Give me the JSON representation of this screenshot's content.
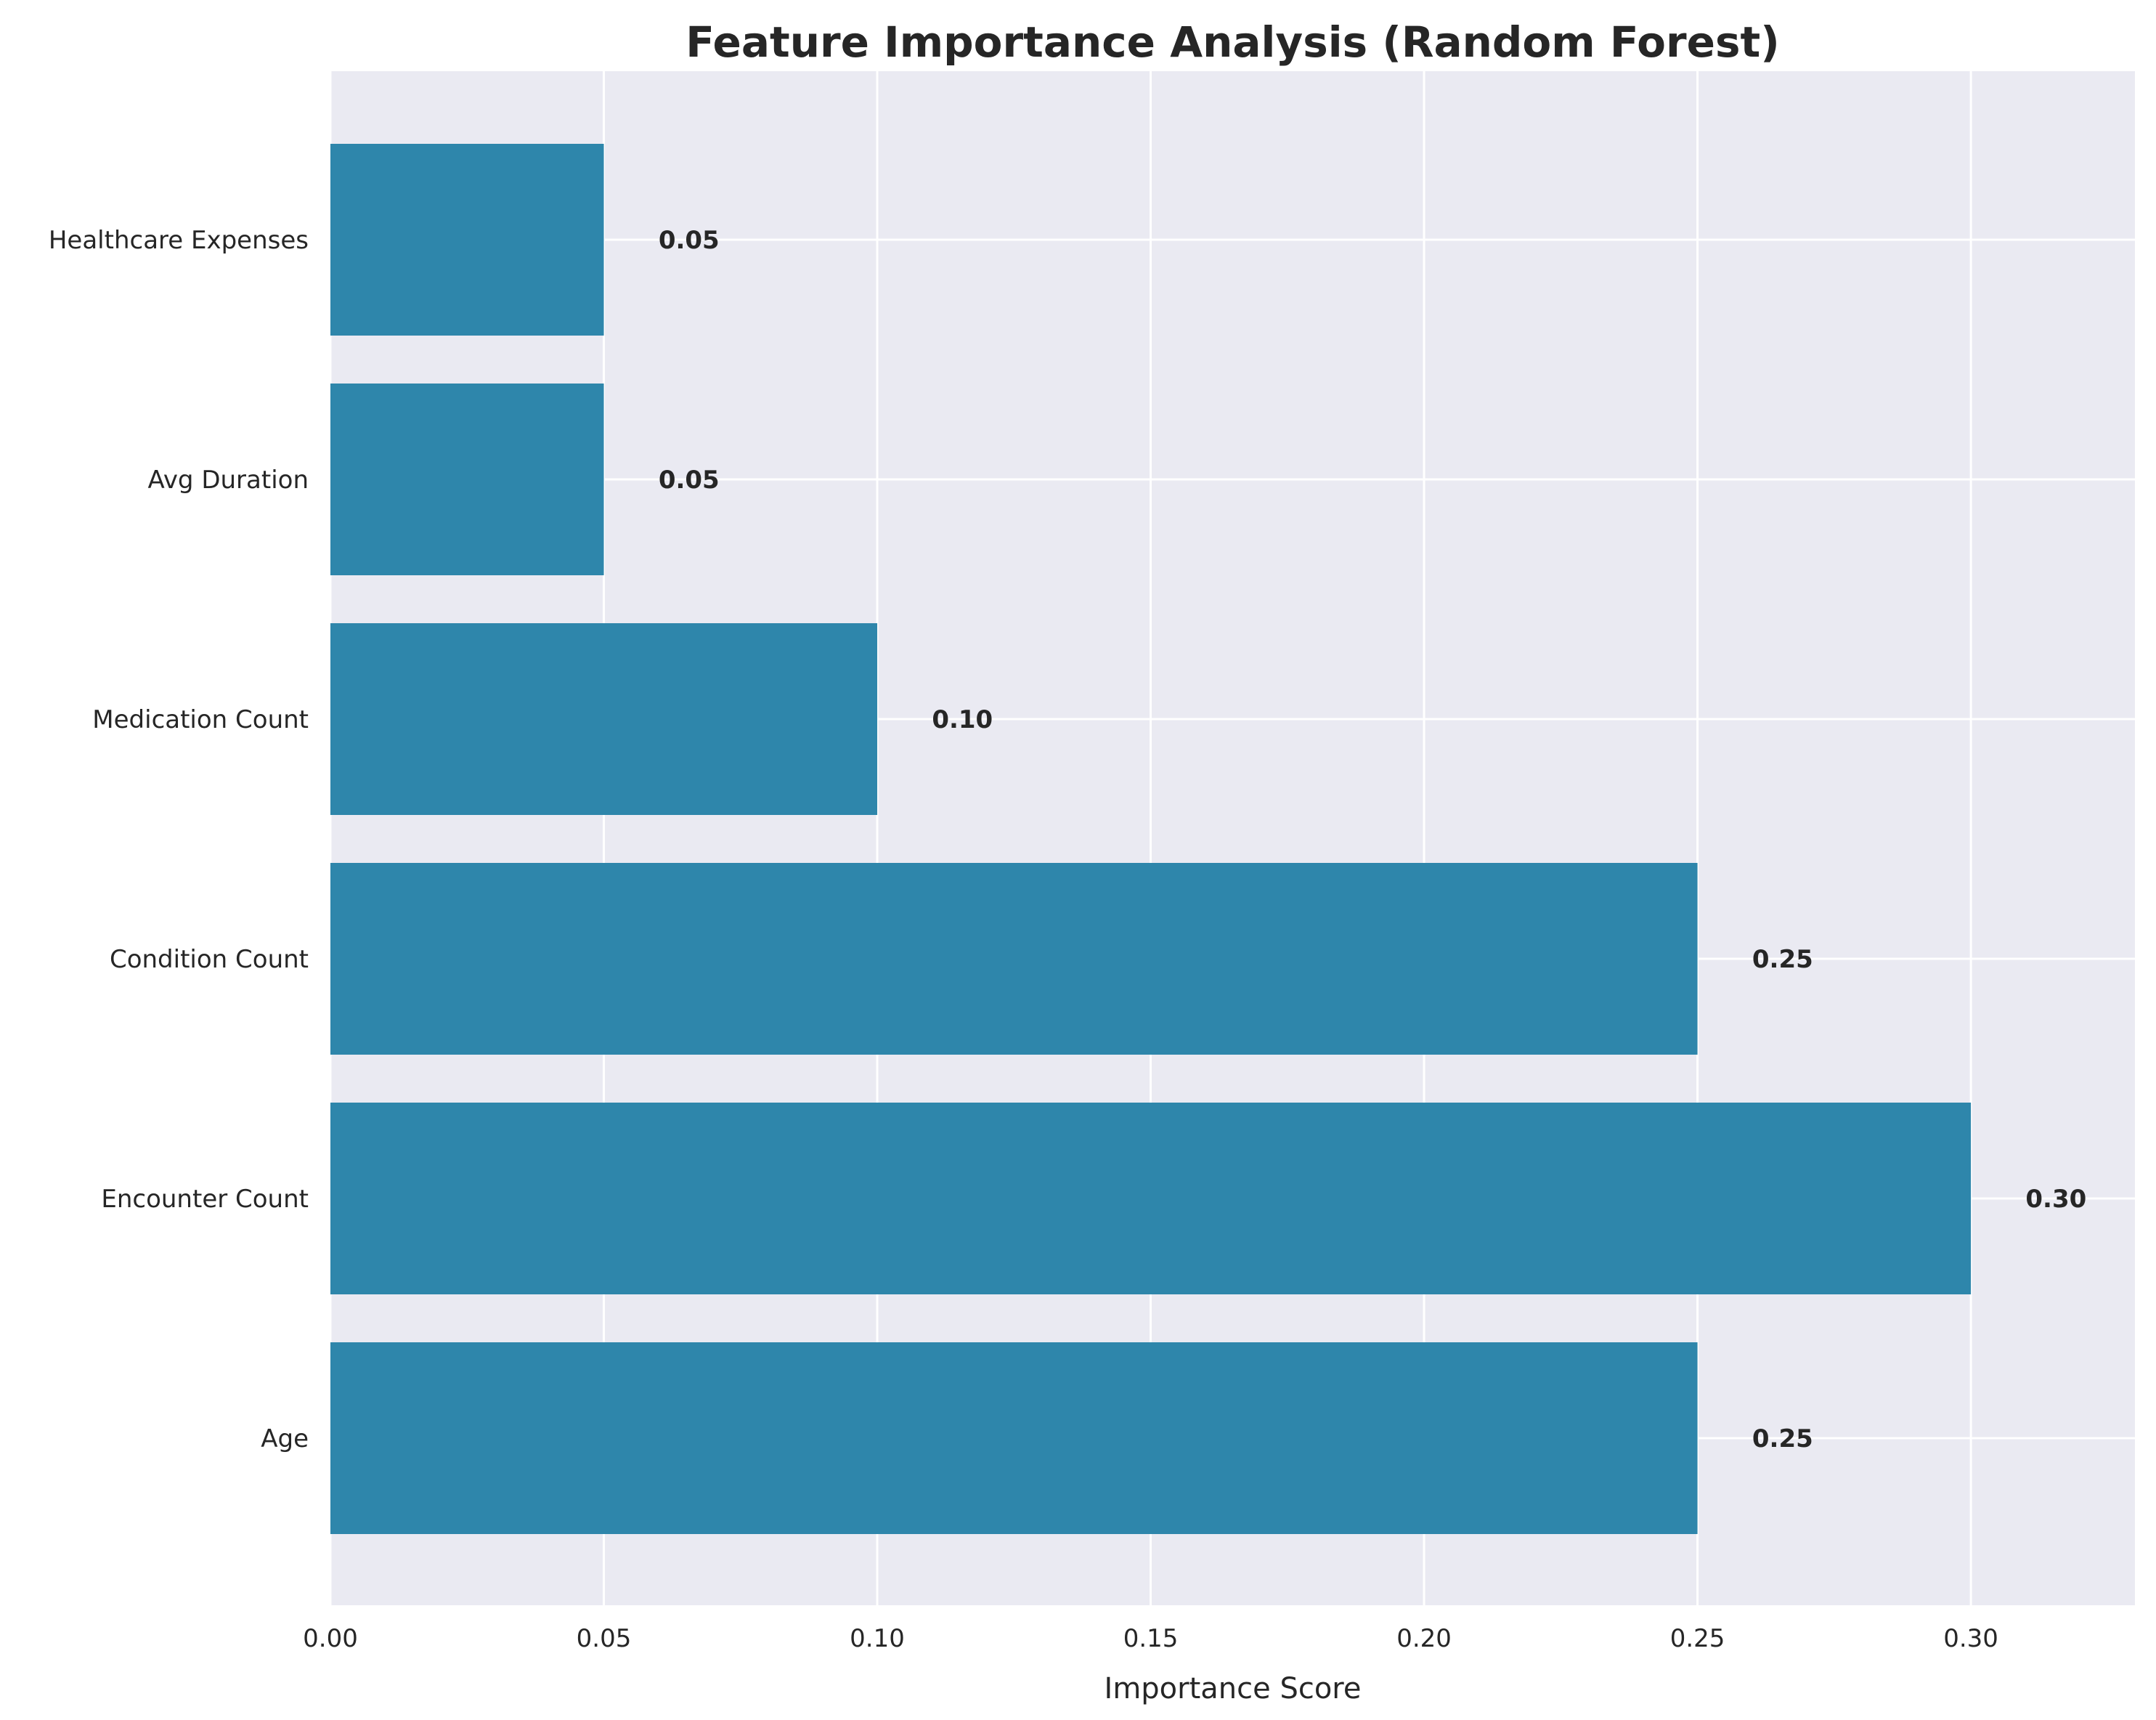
{
  "chart_data": {
    "type": "bar",
    "orientation": "horizontal",
    "title": "Feature Importance Analysis (Random Forest)",
    "xlabel": "Importance Score",
    "ylabel": "",
    "categories": [
      "Age",
      "Encounter Count",
      "Condition Count",
      "Medication Count",
      "Avg Duration",
      "Healthcare Expenses"
    ],
    "values": [
      0.25,
      0.3,
      0.25,
      0.1,
      0.05,
      0.05
    ],
    "value_labels": [
      "0.25",
      "0.30",
      "0.25",
      "0.10",
      "0.05",
      "0.05"
    ],
    "xlim": [
      0,
      0.33
    ],
    "xticks": [
      0.0,
      0.05,
      0.1,
      0.15,
      0.2,
      0.25,
      0.3
    ],
    "xtick_labels": [
      "0.00",
      "0.05",
      "0.10",
      "0.15",
      "0.20",
      "0.25",
      "0.30"
    ],
    "grid": true,
    "legend": "none",
    "colors": {
      "bar": "#2e86ab",
      "plot_background": "#eaeaf2",
      "grid": "#ffffff",
      "text": "#262626"
    }
  }
}
